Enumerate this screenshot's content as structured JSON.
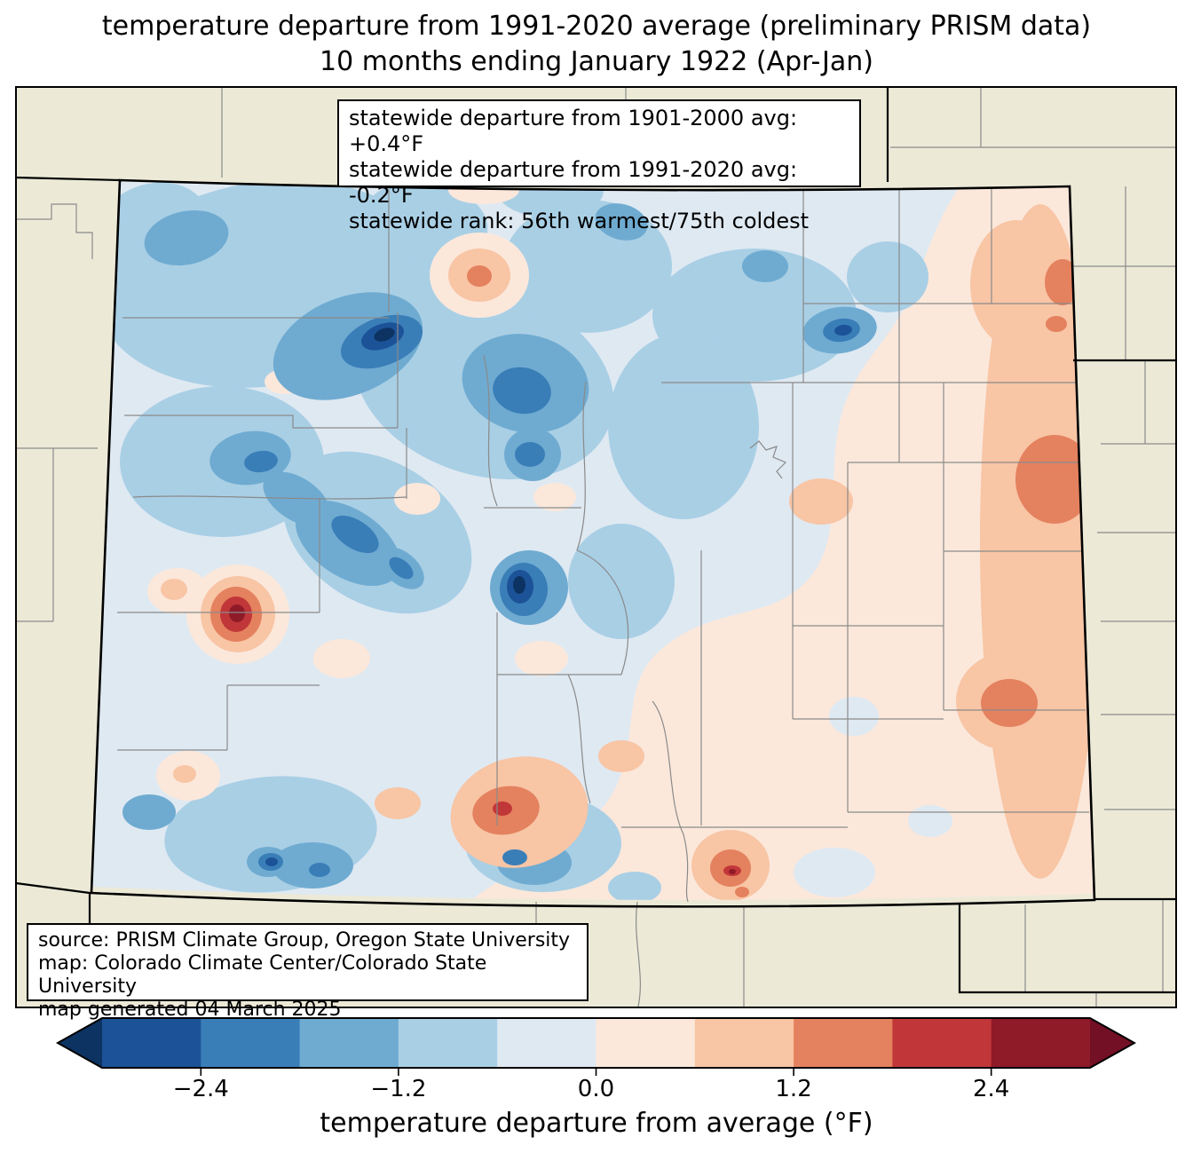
{
  "title": {
    "line1": "temperature departure from 1991-2020 average (preliminary PRISM data)",
    "line2": "10 months ending January 1922 (Apr-Jan)"
  },
  "stats_box": {
    "line1": "statewide departure from 1901-2000 avg: +0.4°F",
    "line2": "statewide departure from 1991-2020 avg: -0.2°F",
    "line3": "statewide rank: 56th warmest/75th coldest",
    "departure_1901_2000_f": 0.4,
    "departure_1991_2020_f": -0.2,
    "rank_warmest": 56,
    "rank_coldest": 75
  },
  "source_box": {
    "line1": "source: PRISM Climate Group, Oregon State University",
    "line2": "map: Colorado Climate Center/Colorado State University",
    "line3": "map generated 04 March 2025"
  },
  "colorbar": {
    "label": "temperature departure from average (°F)",
    "ticks": [
      "−2.4",
      "−1.2",
      "0.0",
      "1.2",
      "2.4"
    ],
    "tick_values": [
      -2.4,
      -1.2,
      0.0,
      1.2,
      2.4
    ],
    "range": [
      -3.0,
      3.0
    ],
    "segment_bounds": [
      -3.0,
      -2.4,
      -1.8,
      -1.2,
      -0.6,
      0.0,
      0.6,
      1.2,
      1.8,
      2.4,
      3.0
    ],
    "segment_colors": [
      "#1c5398",
      "#3a7eb8",
      "#6fabd1",
      "#a9cfe5",
      "#dfe9f2",
      "#fbe8db",
      "#f8c5a5",
      "#e4815e",
      "#c13639",
      "#8f1a28"
    ],
    "under_color": "#0d3363",
    "over_color": "#731026"
  },
  "map": {
    "region": "Colorado",
    "outside_fill": "#ecead7",
    "county_line_color": "#8a8a8a",
    "state_line_color": "#000000"
  }
}
